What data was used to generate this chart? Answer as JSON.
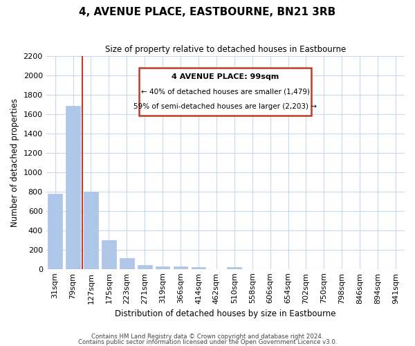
{
  "title": "4, AVENUE PLACE, EASTBOURNE, BN21 3RB",
  "subtitle": "Size of property relative to detached houses in Eastbourne",
  "xlabel": "Distribution of detached houses by size in Eastbourne",
  "ylabel": "Number of detached properties",
  "footnote1": "Contains HM Land Registry data © Crown copyright and database right 2024.",
  "footnote2": "Contains public sector information licensed under the Open Government Licence v3.0.",
  "bins": [
    "31sqm",
    "79sqm",
    "127sqm",
    "175sqm",
    "223sqm",
    "271sqm",
    "319sqm",
    "366sqm",
    "414sqm",
    "462sqm",
    "510sqm",
    "558sqm",
    "606sqm",
    "654sqm",
    "702sqm",
    "750sqm",
    "798sqm",
    "846sqm",
    "894sqm",
    "941sqm"
  ],
  "values": [
    775,
    1680,
    795,
    295,
    112,
    38,
    28,
    28,
    18,
    0,
    18,
    0,
    0,
    0,
    0,
    0,
    0,
    0,
    0,
    0
  ],
  "bar_color": "#aec6e8",
  "highlight_color": "#c0392b",
  "property_name": "4 AVENUE PLACE: 99sqm",
  "annotation_line1": "← 40% of detached houses are smaller (1,479)",
  "annotation_line2": "59% of semi-detached houses are larger (2,203) →",
  "vline_x": 1.5,
  "ylim": [
    0,
    2200
  ],
  "yticks": [
    0,
    200,
    400,
    600,
    800,
    1000,
    1200,
    1400,
    1600,
    1800,
    2000,
    2200
  ],
  "background_color": "#ffffff",
  "grid_color": "#c8d8e8"
}
